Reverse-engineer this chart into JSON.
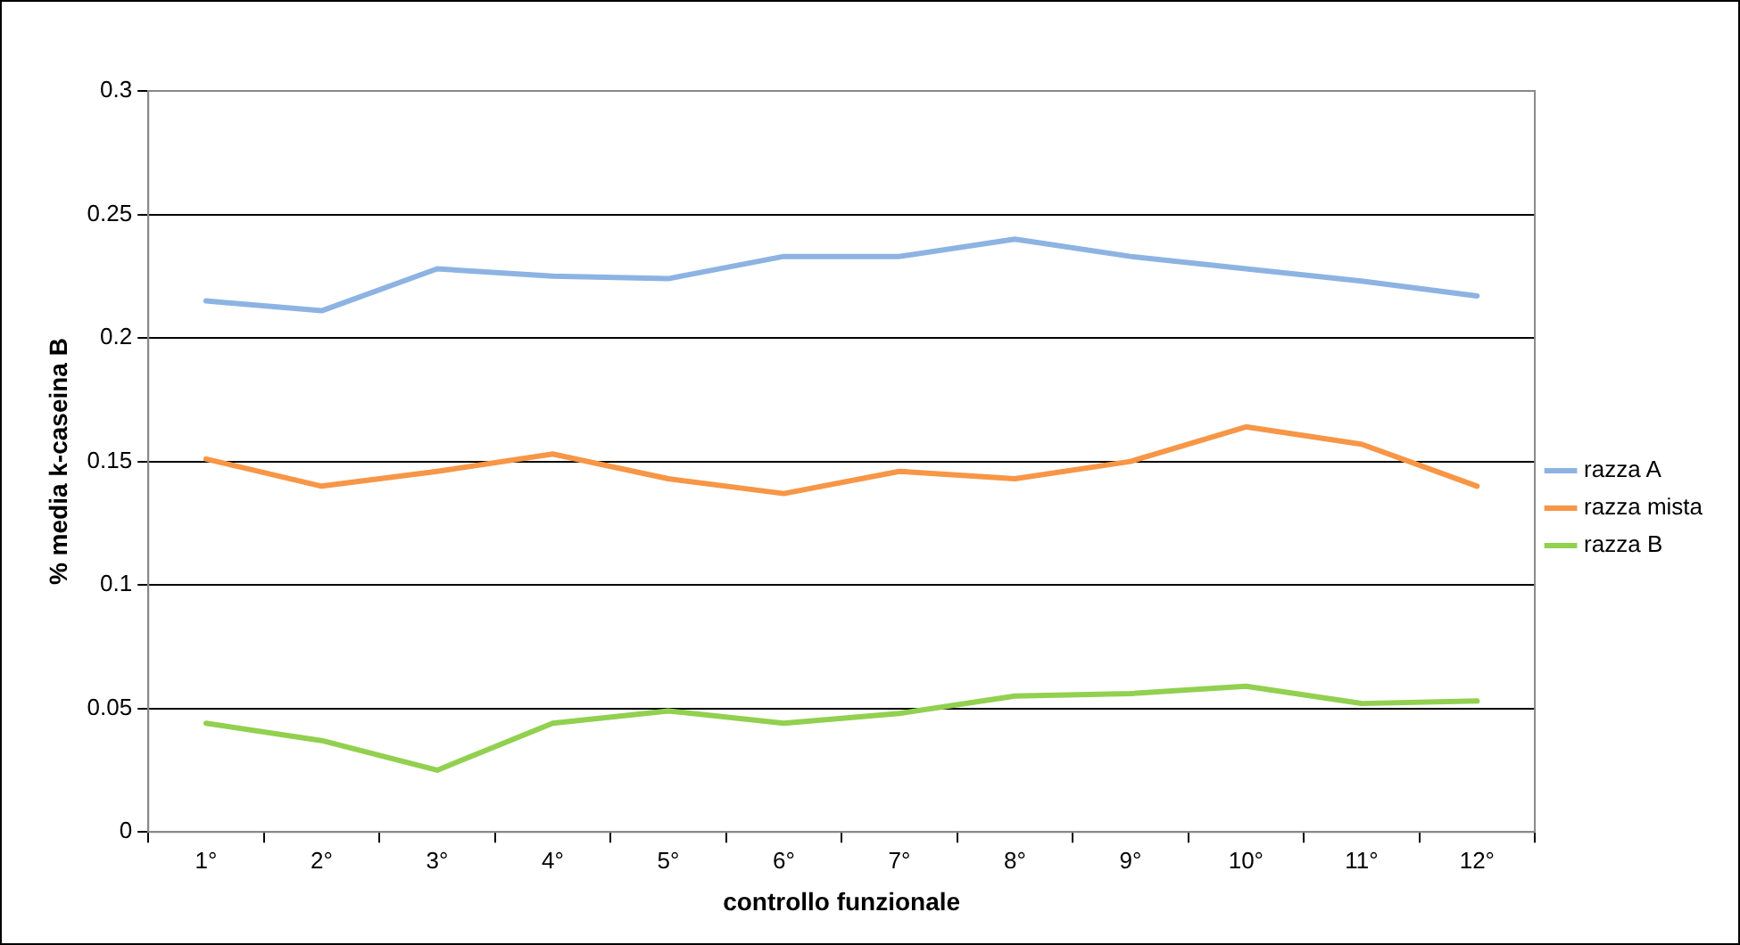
{
  "chart_data": {
    "type": "line",
    "xlabel": "controllo funzionale",
    "ylabel": "% media k-caseina B",
    "categories": [
      "1°",
      "2°",
      "3°",
      "4°",
      "5°",
      "6°",
      "7°",
      "8°",
      "9°",
      "10°",
      "11°",
      "12°"
    ],
    "series": [
      {
        "name": "razza A",
        "color": "#8db3e2",
        "values": [
          0.215,
          0.211,
          0.228,
          0.225,
          0.224,
          0.233,
          0.233,
          0.24,
          0.233,
          0.228,
          0.223,
          0.217
        ]
      },
      {
        "name": "razza mista",
        "color": "#f79646",
        "values": [
          0.151,
          0.14,
          0.146,
          0.153,
          0.143,
          0.137,
          0.146,
          0.143,
          0.15,
          0.164,
          0.157,
          0.14
        ]
      },
      {
        "name": "razza B",
        "color": "#92d050",
        "values": [
          0.044,
          0.037,
          0.025,
          0.044,
          0.049,
          0.044,
          0.048,
          0.055,
          0.056,
          0.059,
          0.052,
          0.053
        ]
      }
    ],
    "ylim": [
      0,
      0.3
    ],
    "yticks": [
      0,
      0.05,
      0.1,
      0.15,
      0.2,
      0.25,
      0.3
    ],
    "grid": "y",
    "legend": "right",
    "marker": "none",
    "line_style": "solid"
  }
}
